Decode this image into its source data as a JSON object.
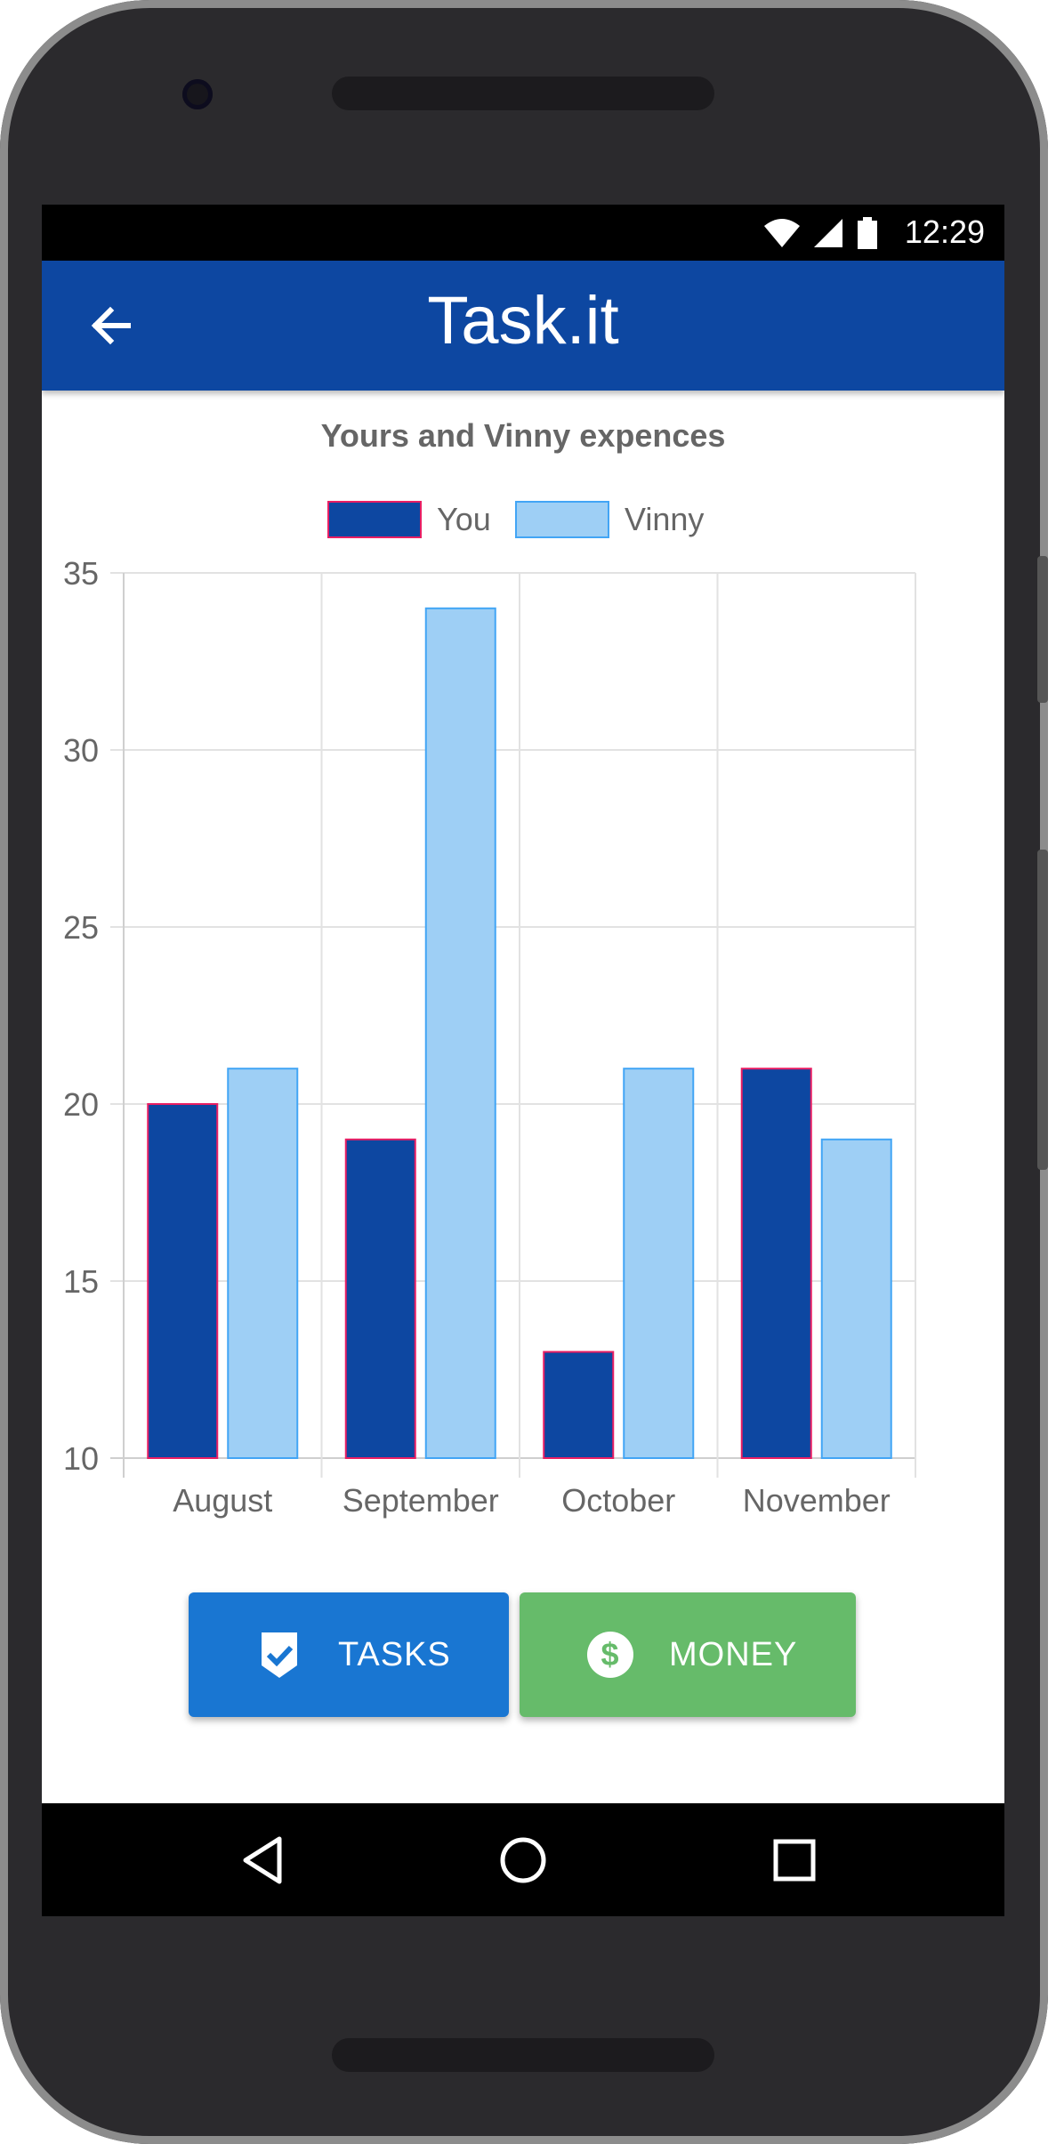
{
  "status_bar": {
    "time": "12:29",
    "icons": [
      "wifi-icon",
      "cell-signal-icon",
      "battery-icon"
    ]
  },
  "app_bar": {
    "title": "Task.it",
    "back_icon": "arrow-left-icon"
  },
  "chart_data": {
    "type": "bar",
    "title": "Yours and Vinny expences",
    "categories": [
      "August",
      "September",
      "October",
      "November"
    ],
    "series": [
      {
        "name": "You",
        "values": [
          20,
          19,
          13,
          21
        ],
        "color": "#0d47a1",
        "border": "#e91e63"
      },
      {
        "name": "Vinny",
        "values": [
          21,
          34,
          21,
          19
        ],
        "color": "#9ecff5",
        "border": "#42a5f5"
      }
    ],
    "ylim": [
      10,
      35
    ],
    "yticks": [
      10,
      15,
      20,
      25,
      30,
      35
    ],
    "grid": true,
    "legend": "top"
  },
  "buttons": {
    "tasks": {
      "label": "TASKS",
      "icon": "shield-check-icon",
      "color": "#1976d2"
    },
    "money": {
      "label": "MONEY",
      "icon": "dollar-circle-icon",
      "color": "#66bb6a"
    }
  },
  "nav_bar": {
    "icons": [
      "back-triangle-icon",
      "home-circle-icon",
      "recents-square-icon"
    ]
  }
}
